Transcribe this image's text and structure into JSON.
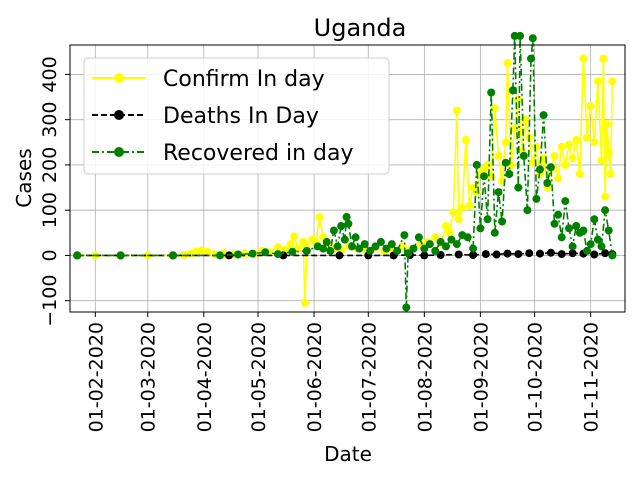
{
  "chart_data": {
    "type": "line",
    "title": "Uganda",
    "xlabel": "Date",
    "ylabel": "Cases",
    "x_range": [
      "2020-01-18",
      "2020-11-20"
    ],
    "ylim": [
      -125,
      465
    ],
    "y_ticks": [
      -100,
      0,
      100,
      200,
      300,
      400
    ],
    "y_tick_labels": [
      "−100",
      "0",
      "100",
      "200",
      "300",
      "400"
    ],
    "x_ticks": [
      "2020-02-01",
      "2020-03-01",
      "2020-04-01",
      "2020-05-01",
      "2020-06-01",
      "2020-07-01",
      "2020-08-01",
      "2020-09-01",
      "2020-10-01",
      "2020-11-01"
    ],
    "x_tick_labels": [
      "01-02-2020",
      "01-03-2020",
      "01-04-2020",
      "01-05-2020",
      "01-06-2020",
      "01-07-2020",
      "01-08-2020",
      "01-09-2020",
      "01-10-2020",
      "01-11-2020"
    ],
    "grid": true,
    "legend_position": "upper left",
    "series": [
      {
        "name": "Confirm In day",
        "color": "#ffff00",
        "linestyle": "solid",
        "points": [
          [
            "2020-01-22",
            0
          ],
          [
            "2020-02-01",
            0
          ],
          [
            "2020-02-15",
            0
          ],
          [
            "2020-03-01",
            0
          ],
          [
            "2020-03-15",
            0
          ],
          [
            "2020-03-21",
            1
          ],
          [
            "2020-03-25",
            4
          ],
          [
            "2020-03-28",
            9
          ],
          [
            "2020-03-31",
            11
          ],
          [
            "2020-04-03",
            8
          ],
          [
            "2020-04-07",
            3
          ],
          [
            "2020-04-12",
            5
          ],
          [
            "2020-04-18",
            2
          ],
          [
            "2020-04-24",
            4
          ],
          [
            "2020-04-29",
            3
          ],
          [
            "2020-05-03",
            10
          ],
          [
            "2020-05-07",
            7
          ],
          [
            "2020-05-12",
            18
          ],
          [
            "2020-05-16",
            12
          ],
          [
            "2020-05-19",
            25
          ],
          [
            "2020-05-21",
            42
          ],
          [
            "2020-05-23",
            15
          ],
          [
            "2020-05-26",
            30
          ],
          [
            "2020-05-27",
            -105
          ],
          [
            "2020-05-28",
            20
          ],
          [
            "2020-05-31",
            35
          ],
          [
            "2020-06-02",
            30
          ],
          [
            "2020-06-04",
            85
          ],
          [
            "2020-06-06",
            40
          ],
          [
            "2020-06-09",
            25
          ],
          [
            "2020-06-12",
            15
          ],
          [
            "2020-06-16",
            12
          ],
          [
            "2020-06-20",
            20
          ],
          [
            "2020-06-25",
            15
          ],
          [
            "2020-06-30",
            10
          ],
          [
            "2020-07-05",
            18
          ],
          [
            "2020-07-10",
            8
          ],
          [
            "2020-07-15",
            12
          ],
          [
            "2020-07-20",
            20
          ],
          [
            "2020-07-25",
            15
          ],
          [
            "2020-07-30",
            25
          ],
          [
            "2020-08-03",
            30
          ],
          [
            "2020-08-07",
            40
          ],
          [
            "2020-08-10",
            25
          ],
          [
            "2020-08-13",
            65
          ],
          [
            "2020-08-15",
            50
          ],
          [
            "2020-08-17",
            95
          ],
          [
            "2020-08-19",
            320
          ],
          [
            "2020-08-20",
            80
          ],
          [
            "2020-08-22",
            105
          ],
          [
            "2020-08-24",
            255
          ],
          [
            "2020-08-26",
            110
          ],
          [
            "2020-08-28",
            150
          ],
          [
            "2020-08-30",
            140
          ],
          [
            "2020-09-01",
            180
          ],
          [
            "2020-09-03",
            190
          ],
          [
            "2020-09-05",
            200
          ],
          [
            "2020-09-07",
            175
          ],
          [
            "2020-09-09",
            325
          ],
          [
            "2020-09-11",
            220
          ],
          [
            "2020-09-13",
            165
          ],
          [
            "2020-09-15",
            250
          ],
          [
            "2020-09-16",
            425
          ],
          [
            "2020-09-18",
            200
          ],
          [
            "2020-09-20",
            280
          ],
          [
            "2020-09-22",
            345
          ],
          [
            "2020-09-24",
            230
          ],
          [
            "2020-09-26",
            300
          ],
          [
            "2020-09-28",
            260
          ],
          [
            "2020-09-30",
            205
          ],
          [
            "2020-10-02",
            240
          ],
          [
            "2020-10-04",
            180
          ],
          [
            "2020-10-06",
            215
          ],
          [
            "2020-10-08",
            150
          ],
          [
            "2020-10-10",
            190
          ],
          [
            "2020-10-12",
            220
          ],
          [
            "2020-10-14",
            170
          ],
          [
            "2020-10-16",
            240
          ],
          [
            "2020-10-18",
            200
          ],
          [
            "2020-10-20",
            245
          ],
          [
            "2020-10-22",
            215
          ],
          [
            "2020-10-24",
            255
          ],
          [
            "2020-10-26",
            180
          ],
          [
            "2020-10-28",
            435
          ],
          [
            "2020-10-30",
            260
          ],
          [
            "2020-11-01",
            330
          ],
          [
            "2020-11-03",
            250
          ],
          [
            "2020-11-05",
            385
          ],
          [
            "2020-11-07",
            210
          ],
          [
            "2020-11-08",
            435
          ],
          [
            "2020-11-09",
            130
          ],
          [
            "2020-11-10",
            290
          ],
          [
            "2020-11-11",
            225
          ],
          [
            "2020-11-12",
            180
          ],
          [
            "2020-11-13",
            385
          ]
        ]
      },
      {
        "name": "Deaths In Day",
        "color": "#000000",
        "linestyle": "dashed",
        "points": [
          [
            "2020-01-22",
            0
          ],
          [
            "2020-02-15",
            0
          ],
          [
            "2020-03-15",
            0
          ],
          [
            "2020-04-15",
            0
          ],
          [
            "2020-05-15",
            0
          ],
          [
            "2020-06-15",
            0
          ],
          [
            "2020-07-01",
            0
          ],
          [
            "2020-07-15",
            0
          ],
          [
            "2020-07-24",
            1
          ],
          [
            "2020-08-01",
            0
          ],
          [
            "2020-08-10",
            1
          ],
          [
            "2020-08-20",
            2
          ],
          [
            "2020-08-28",
            1
          ],
          [
            "2020-09-04",
            3
          ],
          [
            "2020-09-10",
            2
          ],
          [
            "2020-09-16",
            4
          ],
          [
            "2020-09-22",
            3
          ],
          [
            "2020-09-28",
            5
          ],
          [
            "2020-10-04",
            4
          ],
          [
            "2020-10-10",
            6
          ],
          [
            "2020-10-16",
            3
          ],
          [
            "2020-10-22",
            5
          ],
          [
            "2020-10-28",
            4
          ],
          [
            "2020-11-03",
            2
          ],
          [
            "2020-11-09",
            5
          ],
          [
            "2020-11-13",
            3
          ]
        ]
      },
      {
        "name": "Recovered in day",
        "color": "#008000",
        "linestyle": "dashdot",
        "points": [
          [
            "2020-01-22",
            0
          ],
          [
            "2020-02-15",
            0
          ],
          [
            "2020-03-15",
            0
          ],
          [
            "2020-04-10",
            0
          ],
          [
            "2020-04-20",
            2
          ],
          [
            "2020-04-28",
            4
          ],
          [
            "2020-05-05",
            7
          ],
          [
            "2020-05-12",
            3
          ],
          [
            "2020-05-20",
            8
          ],
          [
            "2020-05-28",
            10
          ],
          [
            "2020-06-03",
            20
          ],
          [
            "2020-06-06",
            15
          ],
          [
            "2020-06-08",
            30
          ],
          [
            "2020-06-10",
            10
          ],
          [
            "2020-06-12",
            55
          ],
          [
            "2020-06-14",
            20
          ],
          [
            "2020-06-16",
            65
          ],
          [
            "2020-06-18",
            35
          ],
          [
            "2020-06-19",
            85
          ],
          [
            "2020-06-20",
            70
          ],
          [
            "2020-06-22",
            20
          ],
          [
            "2020-06-24",
            40
          ],
          [
            "2020-06-26",
            15
          ],
          [
            "2020-06-29",
            25
          ],
          [
            "2020-07-02",
            10
          ],
          [
            "2020-07-05",
            20
          ],
          [
            "2020-07-08",
            30
          ],
          [
            "2020-07-11",
            15
          ],
          [
            "2020-07-14",
            25
          ],
          [
            "2020-07-17",
            10
          ],
          [
            "2020-07-21",
            45
          ],
          [
            "2020-07-22",
            -115
          ],
          [
            "2020-07-23",
            5
          ],
          [
            "2020-07-26",
            15
          ],
          [
            "2020-07-29",
            40
          ],
          [
            "2020-08-01",
            15
          ],
          [
            "2020-08-04",
            25
          ],
          [
            "2020-08-07",
            10
          ],
          [
            "2020-08-10",
            30
          ],
          [
            "2020-08-13",
            20
          ],
          [
            "2020-08-16",
            35
          ],
          [
            "2020-08-19",
            25
          ],
          [
            "2020-08-22",
            45
          ],
          [
            "2020-08-25",
            40
          ],
          [
            "2020-08-28",
            15
          ],
          [
            "2020-08-30",
            200
          ],
          [
            "2020-09-01",
            60
          ],
          [
            "2020-09-03",
            175
          ],
          [
            "2020-09-05",
            80
          ],
          [
            "2020-09-07",
            360
          ],
          [
            "2020-09-09",
            50
          ],
          [
            "2020-09-11",
            140
          ],
          [
            "2020-09-13",
            75
          ],
          [
            "2020-09-15",
            205
          ],
          [
            "2020-09-17",
            180
          ],
          [
            "2020-09-19",
            365
          ],
          [
            "2020-09-20",
            485
          ],
          [
            "2020-09-22",
            150
          ],
          [
            "2020-09-23",
            485
          ],
          [
            "2020-09-25",
            220
          ],
          [
            "2020-09-27",
            100
          ],
          [
            "2020-09-29",
            435
          ],
          [
            "2020-09-30",
            480
          ],
          [
            "2020-10-02",
            125
          ],
          [
            "2020-10-04",
            190
          ],
          [
            "2020-10-06",
            310
          ],
          [
            "2020-10-08",
            160
          ],
          [
            "2020-10-10",
            195
          ],
          [
            "2020-10-12",
            70
          ],
          [
            "2020-10-14",
            90
          ],
          [
            "2020-10-16",
            40
          ],
          [
            "2020-10-18",
            120
          ],
          [
            "2020-10-20",
            60
          ],
          [
            "2020-10-22",
            20
          ],
          [
            "2020-10-24",
            65
          ],
          [
            "2020-10-26",
            50
          ],
          [
            "2020-10-28",
            55
          ],
          [
            "2020-10-30",
            10
          ],
          [
            "2020-11-01",
            25
          ],
          [
            "2020-11-03",
            80
          ],
          [
            "2020-11-05",
            35
          ],
          [
            "2020-11-07",
            20
          ],
          [
            "2020-11-09",
            100
          ],
          [
            "2020-11-11",
            55
          ],
          [
            "2020-11-13",
            0
          ]
        ]
      }
    ]
  }
}
